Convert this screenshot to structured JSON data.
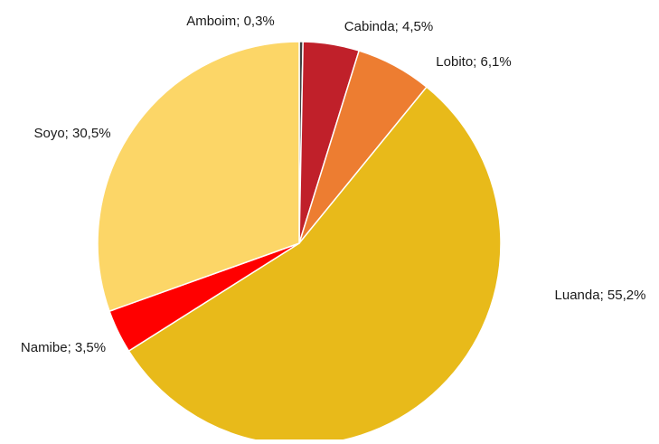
{
  "chart_data": {
    "type": "pie",
    "slices": [
      {
        "name": "Amboim",
        "value": 0.3,
        "label": "Amboim; 0,3%",
        "color": "#404040"
      },
      {
        "name": "Cabinda",
        "value": 4.5,
        "label": "Cabinda; 4,5%",
        "color": "#C0202A"
      },
      {
        "name": "Lobito",
        "value": 6.1,
        "label": "Lobito; 6,1%",
        "color": "#ED7D31"
      },
      {
        "name": "Luanda",
        "value": 55.2,
        "label": "Luanda; 55,2%",
        "color": "#E8BA1A"
      },
      {
        "name": "Namibe",
        "value": 3.5,
        "label": "Namibe; 3,5%",
        "color": "#FF0000"
      },
      {
        "name": "Soyo",
        "value": 30.5,
        "label": "Soyo; 30,5%",
        "color": "#FCD667"
      }
    ],
    "start": "12 o'clock",
    "direction": "clockwise",
    "legend": "none"
  }
}
